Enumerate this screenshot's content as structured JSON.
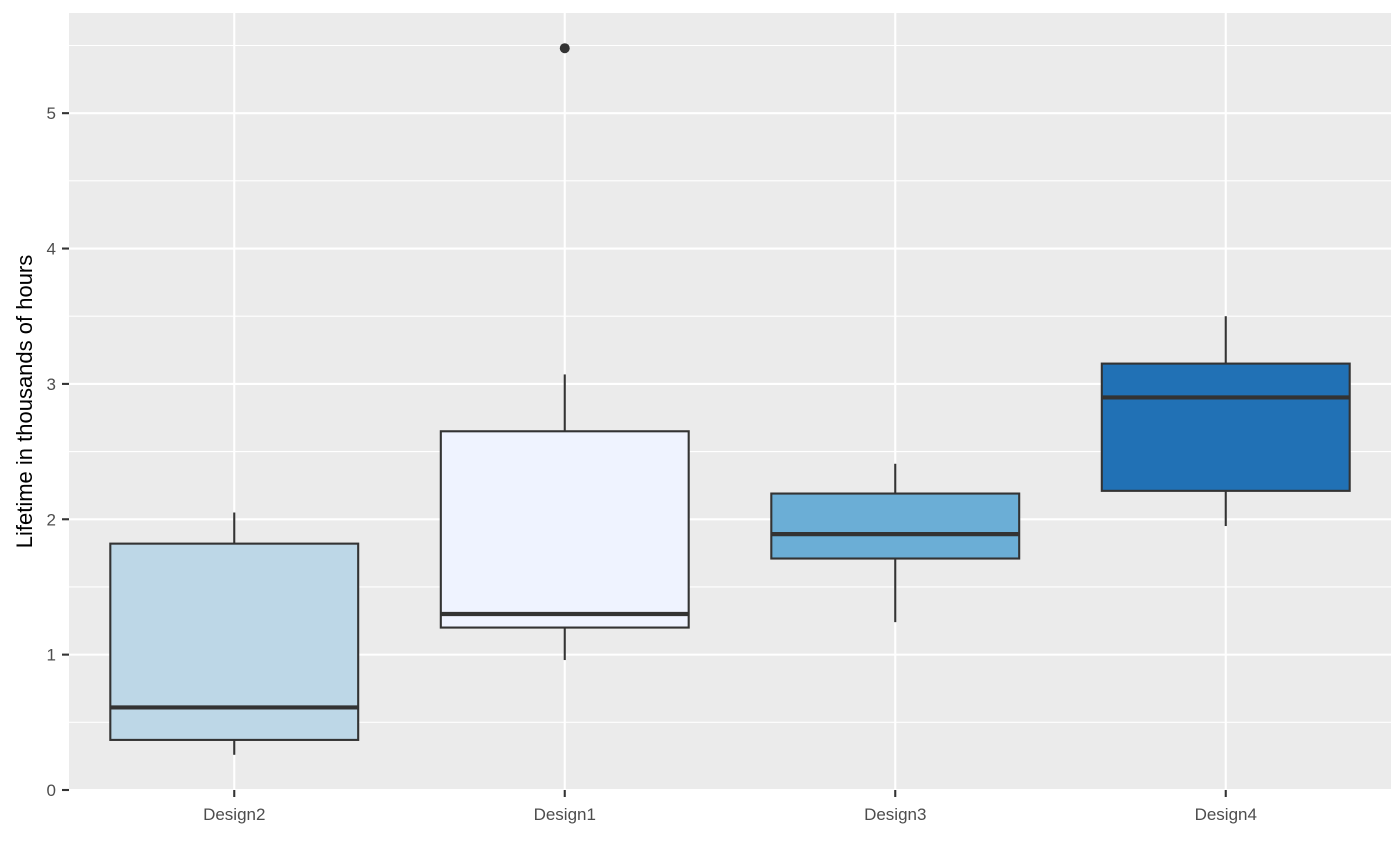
{
  "chart_data": {
    "type": "boxplot",
    "title": "",
    "xlabel": "",
    "ylabel": "Lifetime in thousands of hours",
    "categories": [
      "Design2",
      "Design1",
      "Design3",
      "Design4"
    ],
    "boxes": [
      {
        "category": "Design2",
        "whisker_low": 0.26,
        "q1": 0.37,
        "median": 0.61,
        "q3": 1.82,
        "whisker_high": 2.05,
        "outliers": [],
        "fill": "#BDD7E7"
      },
      {
        "category": "Design1",
        "whisker_low": 0.96,
        "q1": 1.2,
        "median": 1.3,
        "q3": 2.65,
        "whisker_high": 3.07,
        "outliers": [
          5.48
        ],
        "fill": "#EFF3FF"
      },
      {
        "category": "Design3",
        "whisker_low": 1.24,
        "q1": 1.71,
        "median": 1.89,
        "q3": 2.19,
        "whisker_high": 2.41,
        "outliers": [],
        "fill": "#6BAED6"
      },
      {
        "category": "Design4",
        "whisker_low": 1.95,
        "q1": 2.21,
        "median": 2.9,
        "q3": 3.15,
        "whisker_high": 3.5,
        "outliers": [],
        "fill": "#2171B5"
      }
    ],
    "yticks": [
      0,
      1,
      2,
      3,
      4,
      5
    ],
    "ylim": [
      0,
      5.74
    ],
    "grid": true,
    "legend": "none",
    "colors": {
      "panel": "#EBEBEB",
      "grid": "#FFFFFF",
      "box_stroke": "#333333",
      "tick_mark": "#333333",
      "tick_label": "#4D4D4D"
    }
  }
}
